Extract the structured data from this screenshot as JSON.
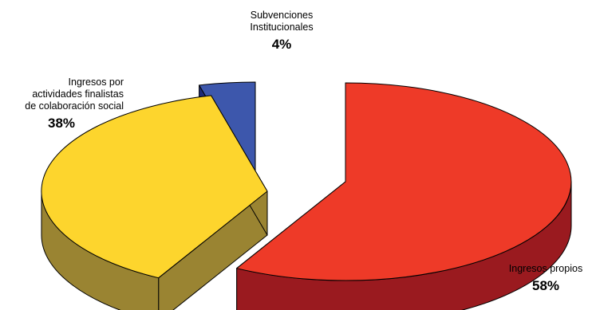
{
  "chart_data": {
    "type": "pie",
    "style": "3d-exploded",
    "title": "",
    "slices": [
      {
        "label": "Ingresos propios",
        "label_lines": [
          "Ingresos propios"
        ],
        "percent_label": "58%",
        "value": 58,
        "color": "#ee3a28",
        "side_color": "#9a1a1f"
      },
      {
        "label": "Ingresos por actividades finalistas de colaboración social",
        "label_lines": [
          "Ingresos por",
          "actividades finalistas",
          "de colaboración social"
        ],
        "percent_label": "38%",
        "value": 38,
        "color": "#fdd52d",
        "side_color": "#9a8432"
      },
      {
        "label": "Subvenciones Institucionales",
        "label_lines": [
          "Subvenciones",
          "Institucionales"
        ],
        "percent_label": "4%",
        "value": 4,
        "color": "#3d57ac",
        "side_color": "#1e2a78"
      }
    ]
  }
}
